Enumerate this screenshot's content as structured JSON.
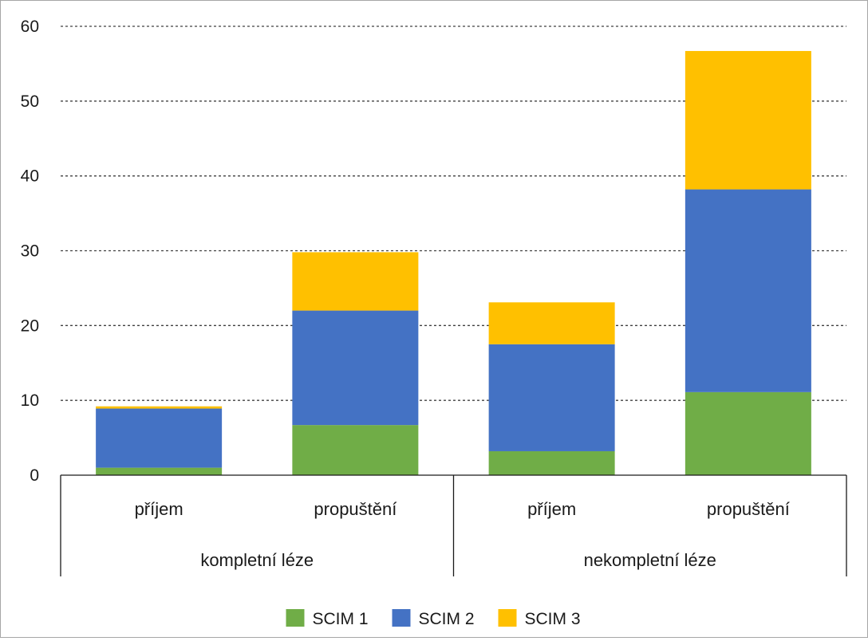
{
  "chart_data": {
    "type": "bar",
    "stacked": true,
    "groups": [
      "kompletní léze",
      "nekompletní léze"
    ],
    "categories": [
      "příjem",
      "propuštění",
      "příjem",
      "propuštění"
    ],
    "category_group": [
      0,
      0,
      1,
      1
    ],
    "series": [
      {
        "name": "SCIM 1",
        "color": "#70ad47",
        "values": [
          1.0,
          6.7,
          3.2,
          11.1
        ]
      },
      {
        "name": "SCIM 2",
        "color": "#4472c4",
        "values": [
          7.9,
          15.3,
          14.3,
          27.1
        ]
      },
      {
        "name": "SCIM 3",
        "color": "#ffc000",
        "values": [
          0.3,
          7.8,
          5.6,
          18.5
        ]
      }
    ],
    "yticks": [
      0,
      10,
      20,
      30,
      40,
      50,
      60
    ],
    "ylim": [
      0,
      60
    ],
    "grid": true,
    "legend_position": "bottom"
  }
}
